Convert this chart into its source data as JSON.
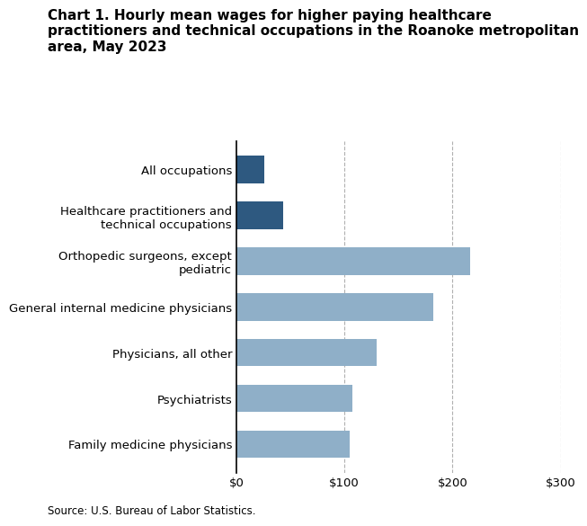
{
  "title": "Chart 1. Hourly mean wages for higher paying healthcare\npractitioners and technical occupations in the Roanoke metropolitan\narea, May 2023",
  "categories": [
    "Family medicine physicians",
    "Psychiatrists",
    "Physicians, all other",
    "General internal medicine physicians",
    "Orthopedic surgeons, except\npediatric",
    "Healthcare practitioners and\ntechnical occupations",
    "All occupations"
  ],
  "values": [
    105,
    107,
    130,
    182,
    216,
    43,
    26
  ],
  "colors": [
    "#8fafc8",
    "#8fafc8",
    "#8fafc8",
    "#8fafc8",
    "#8fafc8",
    "#2e5980",
    "#2e5980"
  ],
  "xlim": [
    0,
    300
  ],
  "xticks": [
    0,
    100,
    200,
    300
  ],
  "xticklabels": [
    "$0",
    "$100",
    "$200",
    "$300"
  ],
  "source": "Source: U.S. Bureau of Labor Statistics.",
  "grid_color": "#b0b0b0",
  "bg_color": "#ffffff",
  "bar_height": 0.6
}
